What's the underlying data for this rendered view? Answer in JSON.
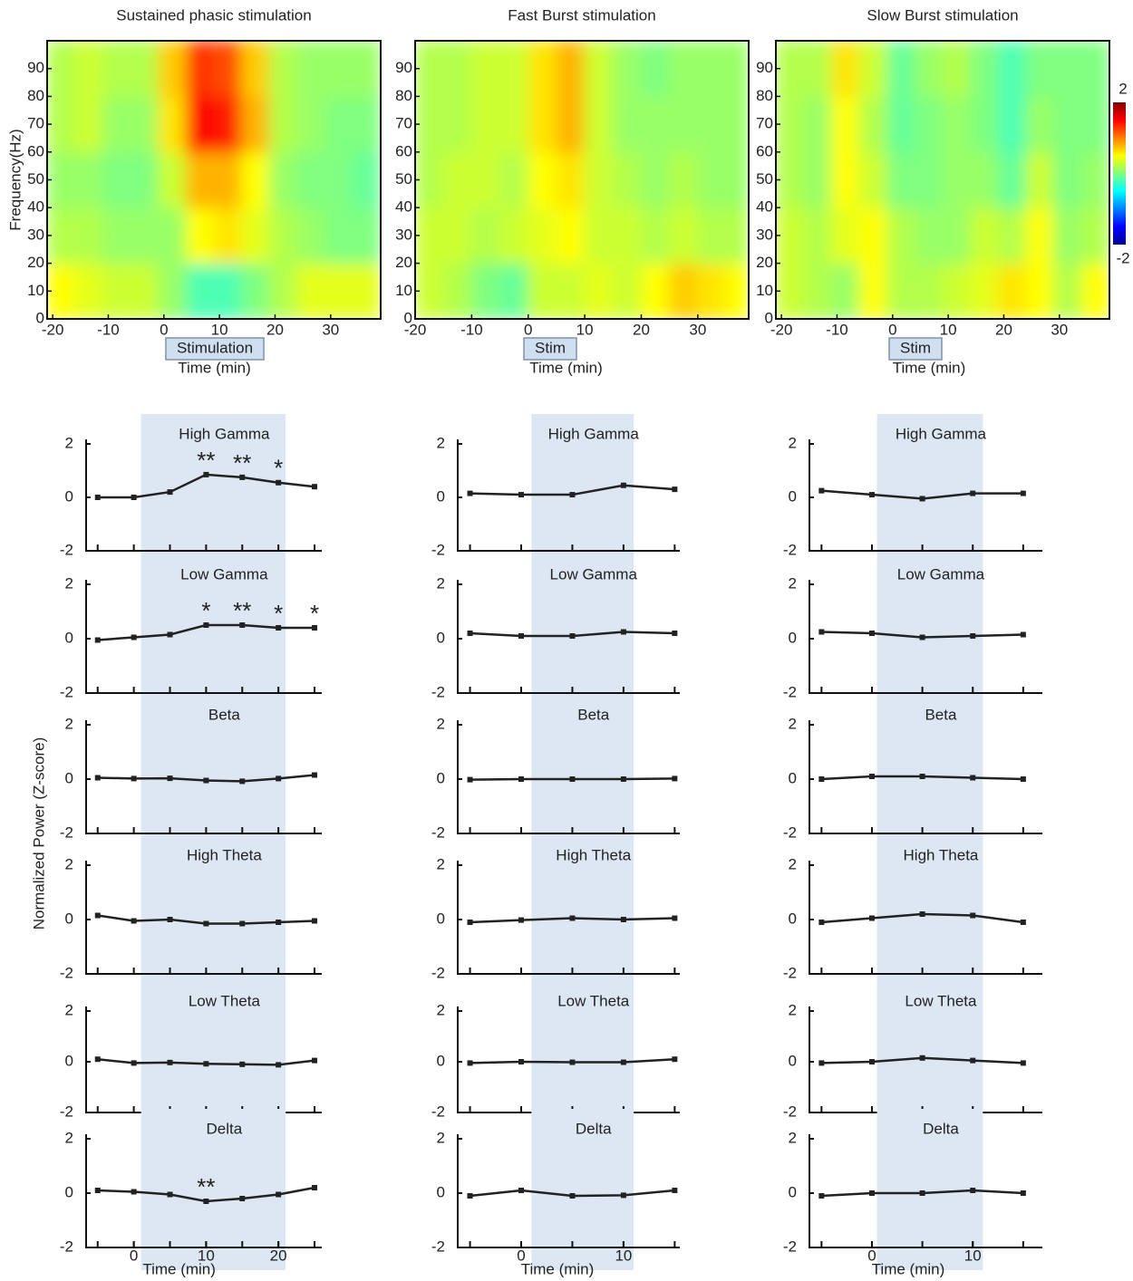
{
  "figure": {
    "ylabel": "Normalized Power (Z-score)"
  },
  "chart_data": [
    {
      "type": "heatmap",
      "title": "Sustained phasic stimulation",
      "xlabel": "Time (min)",
      "ylabel": "Frequency(Hz)",
      "annotation": "Stimulation",
      "colormap": "jet",
      "clim": [
        -2,
        2
      ],
      "xlim": [
        -21,
        39
      ],
      "ylim": [
        0,
        100
      ],
      "xticks": [
        -20,
        -10,
        0,
        10,
        20,
        30
      ],
      "yticks": [
        0,
        10,
        20,
        30,
        40,
        50,
        60,
        70,
        80,
        90
      ],
      "xbins": [
        -21,
        -16,
        -11,
        -6,
        -1,
        4,
        9,
        14,
        19,
        24,
        29,
        34,
        39
      ],
      "ybins": [
        0,
        20,
        40,
        60,
        80,
        100
      ],
      "z": [
        [
          0.5,
          0.4,
          0.3,
          0.3,
          0.1,
          -0.2,
          -0.2,
          0,
          0.2,
          0.4,
          0.4,
          0.4
        ],
        [
          0.2,
          0.2,
          0.1,
          0.1,
          0.1,
          0.5,
          0.6,
          0.4,
          0.2,
          0.1,
          0,
          0
        ],
        [
          0.1,
          0.1,
          0,
          0,
          0.3,
          0.8,
          0.8,
          0.5,
          0.1,
          0,
          0,
          -0.1
        ],
        [
          0.2,
          0.3,
          0.1,
          0.1,
          0.6,
          1.5,
          1.4,
          0.8,
          0.2,
          0.1,
          0,
          0
        ],
        [
          0.2,
          0.3,
          0.2,
          0.2,
          0.7,
          1.3,
          1.2,
          0.7,
          0.2,
          0.1,
          0.1,
          0.1
        ]
      ]
    },
    {
      "type": "heatmap",
      "title": "Fast Burst stimulation",
      "xlabel": "Time (min)",
      "annotation": "Stim",
      "colormap": "jet",
      "clim": [
        -2,
        2
      ],
      "xlim": [
        -20,
        39
      ],
      "ylim": [
        0,
        100
      ],
      "xticks": [
        -20,
        -10,
        0,
        10,
        20,
        30
      ],
      "yticks": [
        0,
        10,
        20,
        30,
        40,
        50,
        60,
        70,
        80,
        90
      ],
      "xbins": [
        -20,
        -15,
        -10,
        -5,
        0,
        5,
        10,
        15,
        20,
        25,
        30,
        35,
        39
      ],
      "ybins": [
        0,
        20,
        40,
        60,
        80,
        100
      ],
      "z": [
        [
          0.3,
          0.2,
          0,
          -0.1,
          0.3,
          0.3,
          0.4,
          0.3,
          0.5,
          0.7,
          0.6,
          0.5
        ],
        [
          0.3,
          0.3,
          0.2,
          0.3,
          0.4,
          0.5,
          0.3,
          0.3,
          0.2,
          0.3,
          0.2,
          0.2
        ],
        [
          0.2,
          0.3,
          0.3,
          0.2,
          0.5,
          0.6,
          0.3,
          0.2,
          0.1,
          0.2,
          0.1,
          0.1
        ],
        [
          0.2,
          0.2,
          0.3,
          0.3,
          0.6,
          0.8,
          0.3,
          0.1,
          0.1,
          0.1,
          0.1,
          0.1
        ],
        [
          0.2,
          0.2,
          0.3,
          0.3,
          0.6,
          0.8,
          0.3,
          0.1,
          0,
          0.1,
          0.1,
          0.1
        ]
      ]
    },
    {
      "type": "heatmap",
      "title": "Slow Burst stimulation",
      "xlabel": "Time (min)",
      "annotation": "Stim",
      "colormap": "jet",
      "clim": [
        -2,
        2
      ],
      "xlim": [
        -21,
        39
      ],
      "ylim": [
        0,
        100
      ],
      "xticks": [
        -20,
        -10,
        0,
        10,
        20,
        30
      ],
      "yticks": [
        0,
        10,
        20,
        30,
        40,
        50,
        60,
        70,
        80,
        90
      ],
      "colorbar_ticks": [
        2,
        -2
      ],
      "xbins": [
        -21,
        -16,
        -11,
        -6,
        -1,
        4,
        9,
        14,
        19,
        24,
        29,
        34,
        39
      ],
      "ybins": [
        0,
        20,
        40,
        60,
        80,
        100
      ],
      "z": [
        [
          0.3,
          0.2,
          0.1,
          0.5,
          0.2,
          0.2,
          0.3,
          0.4,
          0.6,
          0.5,
          0.2,
          0.5
        ],
        [
          0.3,
          0.2,
          0.4,
          0.5,
          0.2,
          0.1,
          0.1,
          0.3,
          0.2,
          0.5,
          0.1,
          0.2
        ],
        [
          0.2,
          0.1,
          0.5,
          0.3,
          0,
          0,
          0.1,
          0.1,
          -0.1,
          0.3,
          0,
          0.1
        ],
        [
          0.2,
          0.1,
          0.5,
          0.2,
          -0.1,
          0,
          0.1,
          0,
          -0.2,
          0.1,
          0,
          0
        ],
        [
          0.2,
          0.2,
          0.6,
          0.3,
          -0.1,
          0.1,
          0.2,
          0,
          -0.2,
          0,
          0,
          0
        ]
      ]
    },
    {
      "type": "line",
      "title": "High Gamma",
      "x": [
        -5,
        0,
        5,
        10,
        15,
        20,
        25
      ],
      "values": [
        0,
        0,
        0.2,
        0.85,
        0.75,
        0.55,
        0.4
      ],
      "color": "#222",
      "xlim": [
        -6.6,
        26
      ],
      "ylim": [
        -2,
        2
      ],
      "yticks": [
        -2,
        0,
        2
      ],
      "shade": [
        1,
        21
      ],
      "annotations": [
        {
          "x": 10,
          "text": "**"
        },
        {
          "x": 15,
          "text": "**"
        },
        {
          "x": 20,
          "text": "*"
        }
      ]
    },
    {
      "type": "line",
      "title": "Low Gamma",
      "x": [
        -5,
        0,
        5,
        10,
        15,
        20,
        25
      ],
      "values": [
        -0.05,
        0.05,
        0.15,
        0.5,
        0.5,
        0.4,
        0.4
      ],
      "color": "#222",
      "xlim": [
        -6.6,
        26
      ],
      "ylim": [
        -2,
        2
      ],
      "yticks": [
        -2,
        0,
        2
      ],
      "shade": [
        1,
        21
      ],
      "annotations": [
        {
          "x": 10,
          "text": "*"
        },
        {
          "x": 15,
          "text": "**"
        },
        {
          "x": 20,
          "text": "*"
        },
        {
          "x": 25,
          "text": "*"
        }
      ]
    },
    {
      "type": "line",
      "title": "Beta",
      "x": [
        -5,
        0,
        5,
        10,
        15,
        20,
        25
      ],
      "values": [
        0.05,
        0.02,
        0.03,
        -0.05,
        -0.08,
        0.02,
        0.15
      ],
      "color": "#222",
      "xlim": [
        -6.6,
        26
      ],
      "ylim": [
        -2,
        2
      ],
      "yticks": [
        -2,
        0,
        2
      ],
      "shade": [
        1,
        21
      ]
    },
    {
      "type": "line",
      "title": "High Theta",
      "x": [
        -5,
        0,
        5,
        10,
        15,
        20,
        25
      ],
      "values": [
        0.15,
        -0.05,
        0,
        -0.15,
        -0.15,
        -0.1,
        -0.05
      ],
      "color": "#222",
      "xlim": [
        -6.6,
        26
      ],
      "ylim": [
        -2,
        2
      ],
      "yticks": [
        -2,
        0,
        2
      ],
      "shade": [
        1,
        21
      ]
    },
    {
      "type": "line",
      "title": "Low Theta",
      "x": [
        -5,
        0,
        5,
        10,
        15,
        20,
        25
      ],
      "values": [
        0.1,
        -0.05,
        -0.03,
        -0.08,
        -0.1,
        -0.12,
        0.05
      ],
      "color": "#222",
      "xlim": [
        -6.6,
        26
      ],
      "ylim": [
        -2,
        2
      ],
      "yticks": [
        -2,
        0,
        2
      ],
      "shade": [
        1,
        21
      ]
    },
    {
      "type": "line",
      "title": "Delta",
      "x": [
        -5,
        0,
        5,
        10,
        15,
        20,
        25
      ],
      "values": [
        0.1,
        0.05,
        -0.05,
        -0.3,
        -0.2,
        -0.05,
        0.2
      ],
      "color": "#222",
      "xlim": [
        -6.6,
        26
      ],
      "ylim": [
        -2,
        2
      ],
      "yticks": [
        -2,
        0,
        2
      ],
      "xticks": [
        0,
        10,
        20
      ],
      "xlabel": "Time (min)",
      "shade": [
        1,
        21
      ],
      "annotations": [
        {
          "x": 10,
          "text": "**"
        }
      ]
    },
    {
      "type": "line",
      "title": "High Gamma",
      "x": [
        -5,
        0,
        5,
        10,
        15
      ],
      "values": [
        0.15,
        0.1,
        0.1,
        0.45,
        0.3
      ],
      "color": "#222",
      "xlim": [
        -6.2,
        15.5
      ],
      "ylim": [
        -2,
        2
      ],
      "yticks": [
        -2,
        0,
        2
      ],
      "shade": [
        1,
        11
      ]
    },
    {
      "type": "line",
      "title": "Low Gamma",
      "x": [
        -5,
        0,
        5,
        10,
        15
      ],
      "values": [
        0.2,
        0.1,
        0.1,
        0.25,
        0.2
      ],
      "color": "#222",
      "xlim": [
        -6.2,
        15.5
      ],
      "ylim": [
        -2,
        2
      ],
      "yticks": [
        -2,
        0,
        2
      ],
      "shade": [
        1,
        11
      ]
    },
    {
      "type": "line",
      "title": "Beta",
      "x": [
        -5,
        0,
        5,
        10,
        15
      ],
      "values": [
        -0.02,
        0,
        0,
        0,
        0.02
      ],
      "color": "#222",
      "xlim": [
        -6.2,
        15.5
      ],
      "ylim": [
        -2,
        2
      ],
      "yticks": [
        -2,
        0,
        2
      ],
      "shade": [
        1,
        11
      ]
    },
    {
      "type": "line",
      "title": "High Theta",
      "x": [
        -5,
        0,
        5,
        10,
        15
      ],
      "values": [
        -0.1,
        -0.02,
        0.05,
        0,
        0.05
      ],
      "color": "#222",
      "xlim": [
        -6.2,
        15.5
      ],
      "ylim": [
        -2,
        2
      ],
      "yticks": [
        -2,
        0,
        2
      ],
      "shade": [
        1,
        11
      ]
    },
    {
      "type": "line",
      "title": "Low Theta",
      "x": [
        -5,
        0,
        5,
        10,
        15
      ],
      "values": [
        -0.05,
        0,
        -0.02,
        -0.02,
        0.1
      ],
      "color": "#222",
      "xlim": [
        -6.2,
        15.5
      ],
      "ylim": [
        -2,
        2
      ],
      "yticks": [
        -2,
        0,
        2
      ],
      "shade": [
        1,
        11
      ]
    },
    {
      "type": "line",
      "title": "Delta",
      "x": [
        -5,
        0,
        5,
        10,
        15
      ],
      "values": [
        -0.1,
        0.1,
        -0.1,
        -0.08,
        0.1
      ],
      "color": "#222",
      "xlim": [
        -6.2,
        15.5
      ],
      "ylim": [
        -2,
        2
      ],
      "yticks": [
        -2,
        0,
        2
      ],
      "xticks": [
        0,
        10
      ],
      "xlabel": "Time (min)",
      "shade": [
        1,
        11
      ]
    },
    {
      "type": "line",
      "title": "High Gamma",
      "x": [
        -5,
        0,
        5,
        10,
        15
      ],
      "values": [
        0.25,
        0.1,
        -0.05,
        0.15,
        0.15
      ],
      "color": "#222",
      "xlim": [
        -6.2,
        16.9
      ],
      "ylim": [
        -2,
        2
      ],
      "yticks": [
        -2,
        0,
        2
      ],
      "shade": [
        0.5,
        11
      ]
    },
    {
      "type": "line",
      "title": "Low Gamma",
      "x": [
        -5,
        0,
        5,
        10,
        15
      ],
      "values": [
        0.25,
        0.2,
        0.05,
        0.1,
        0.15
      ],
      "color": "#222",
      "xlim": [
        -6.2,
        16.9
      ],
      "ylim": [
        -2,
        2
      ],
      "yticks": [
        -2,
        0,
        2
      ],
      "shade": [
        0.5,
        11
      ]
    },
    {
      "type": "line",
      "title": "Beta",
      "x": [
        -5,
        0,
        5,
        10,
        15
      ],
      "values": [
        0,
        0.1,
        0.1,
        0.05,
        0
      ],
      "color": "#222",
      "xlim": [
        -6.2,
        16.9
      ],
      "ylim": [
        -2,
        2
      ],
      "yticks": [
        -2,
        0,
        2
      ],
      "shade": [
        0.5,
        11
      ]
    },
    {
      "type": "line",
      "title": "High Theta",
      "x": [
        -5,
        0,
        5,
        10,
        15
      ],
      "values": [
        -0.1,
        0.05,
        0.2,
        0.15,
        -0.1
      ],
      "color": "#222",
      "xlim": [
        -6.2,
        16.9
      ],
      "ylim": [
        -2,
        2
      ],
      "yticks": [
        -2,
        0,
        2
      ],
      "shade": [
        0.5,
        11
      ]
    },
    {
      "type": "line",
      "title": "Low Theta",
      "x": [
        -5,
        0,
        5,
        10,
        15
      ],
      "values": [
        -0.05,
        0,
        0.15,
        0.05,
        -0.05
      ],
      "color": "#222",
      "xlim": [
        -6.2,
        16.9
      ],
      "ylim": [
        -2,
        2
      ],
      "yticks": [
        -2,
        0,
        2
      ],
      "shade": [
        0.5,
        11
      ]
    },
    {
      "type": "line",
      "title": "Delta",
      "x": [
        -5,
        0,
        5,
        10,
        15
      ],
      "values": [
        -0.1,
        0,
        0,
        0.1,
        0
      ],
      "color": "#222",
      "xlim": [
        -6.2,
        16.9
      ],
      "ylim": [
        -2,
        2
      ],
      "yticks": [
        -2,
        0,
        2
      ],
      "xticks": [
        0,
        10
      ],
      "xlabel": "Time (min)",
      "shade": [
        0.5,
        11
      ]
    }
  ]
}
